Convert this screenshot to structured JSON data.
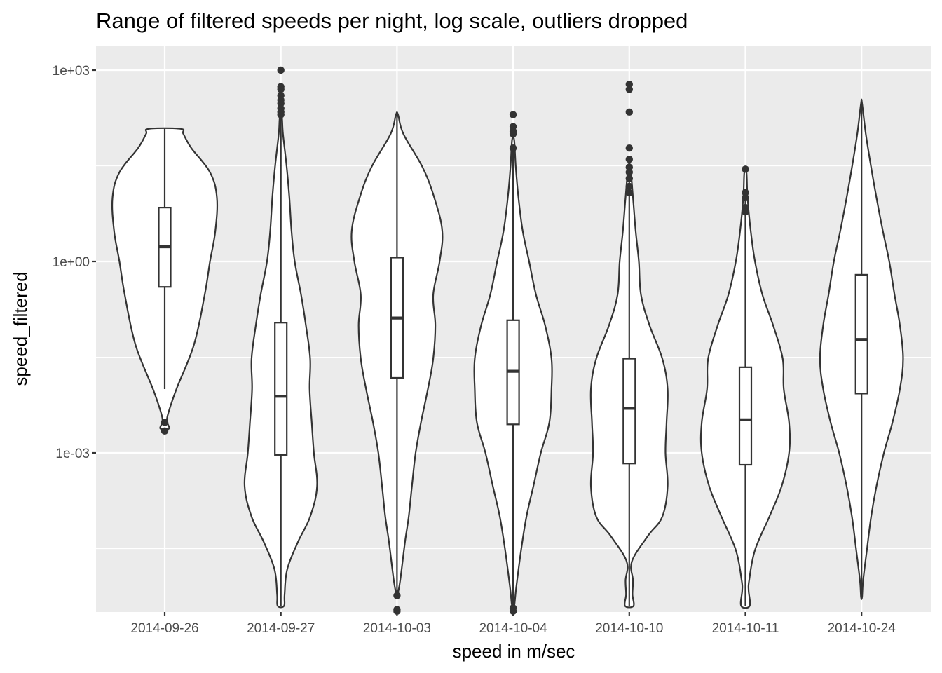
{
  "chart_data": {
    "type": "violin",
    "title": "Range of filtered speeds per night, log scale, outliers dropped",
    "xlabel": "speed in m/sec",
    "ylabel": "speed_filtered",
    "y_scale": "log10",
    "ylim": [
      2.63e-06,
      2.0
    ],
    "y_ticks": [
      {
        "value": 1000,
        "label": "1e+03"
      },
      {
        "value": 1,
        "label": "1e+00"
      },
      {
        "value": 0.001,
        "label": "1e-03"
      }
    ],
    "y_minor_ticks": [
      31.6,
      0.0316,
      3.16e-05
    ],
    "grid": true,
    "panel_background": "#ebebeb",
    "grid_color": "#ffffff",
    "violin_fill": "#ffffff",
    "line_color": "#333333",
    "categories": [
      "2014-09-26",
      "2014-09-27",
      "2014-10-03",
      "2014-10-04",
      "2014-10-10",
      "2014-10-11",
      "2014-10-24"
    ],
    "violins": [
      {
        "category": "2014-09-26",
        "density": [
          [
            0.0024,
            0.08
          ],
          [
            0.003,
            0.05
          ],
          [
            0.004,
            0.06
          ],
          [
            0.01,
            0.22
          ],
          [
            0.05,
            0.55
          ],
          [
            0.3,
            0.75
          ],
          [
            1.0,
            0.85
          ],
          [
            3.0,
            0.95
          ],
          [
            10.0,
            0.98
          ],
          [
            25.0,
            0.85
          ],
          [
            60.0,
            0.5
          ],
          [
            100.0,
            0.35
          ],
          [
            120.0,
            0.3
          ]
        ],
        "box": {
          "min": 0.01,
          "q1": 0.4,
          "median": 1.7,
          "q3": 7.0,
          "max": 120.0
        },
        "outliers": [
          0.003,
          0.0022
        ]
      },
      {
        "category": "2014-09-27",
        "density": [
          [
            4e-06,
            0.06
          ],
          [
            6e-06,
            0.07
          ],
          [
            1.5e-05,
            0.12
          ],
          [
            4e-05,
            0.32
          ],
          [
            0.0001,
            0.55
          ],
          [
            0.0003,
            0.68
          ],
          [
            0.001,
            0.62
          ],
          [
            0.003,
            0.58
          ],
          [
            0.01,
            0.54
          ],
          [
            0.03,
            0.55
          ],
          [
            0.1,
            0.47
          ],
          [
            0.3,
            0.38
          ],
          [
            1.0,
            0.26
          ],
          [
            3.0,
            0.2
          ],
          [
            10.0,
            0.16
          ],
          [
            30.0,
            0.11
          ],
          [
            100.0,
            0.04
          ],
          [
            180.0,
            0.02
          ]
        ],
        "box": {
          "min": 4e-06,
          "q1": 0.00093,
          "median": 0.0077,
          "q3": 0.11,
          "max": 200.0
        },
        "outliers": [
          1000,
          550,
          500,
          400,
          340,
          300,
          250,
          220,
          200
        ]
      },
      {
        "category": "2014-10-03",
        "density": [
          [
            6e-06,
            0.01
          ],
          [
            1e-05,
            0.06
          ],
          [
            4e-05,
            0.15
          ],
          [
            0.0001,
            0.22
          ],
          [
            0.0003,
            0.28
          ],
          [
            0.001,
            0.35
          ],
          [
            0.003,
            0.45
          ],
          [
            0.01,
            0.58
          ],
          [
            0.03,
            0.68
          ],
          [
            0.1,
            0.72
          ],
          [
            0.3,
            0.68
          ],
          [
            1.0,
            0.8
          ],
          [
            3.0,
            0.85
          ],
          [
            10.0,
            0.7
          ],
          [
            30.0,
            0.48
          ],
          [
            100.0,
            0.12
          ],
          [
            200.0,
            0.02
          ]
        ],
        "box": {
          "min": 6e-06,
          "q1": 0.015,
          "median": 0.13,
          "q3": 1.15,
          "max": 200.0
        },
        "outliers": [
          5.8e-06,
          3.5e-06,
          3.3e-06
        ]
      },
      {
        "category": "2014-10-04",
        "density": [
          [
            4e-06,
            0.02
          ],
          [
            8e-06,
            0.06
          ],
          [
            3e-05,
            0.15
          ],
          [
            0.0001,
            0.25
          ],
          [
            0.0003,
            0.38
          ],
          [
            0.001,
            0.52
          ],
          [
            0.003,
            0.68
          ],
          [
            0.01,
            0.72
          ],
          [
            0.03,
            0.72
          ],
          [
            0.1,
            0.6
          ],
          [
            0.3,
            0.43
          ],
          [
            1.0,
            0.3
          ],
          [
            3.0,
            0.18
          ],
          [
            10.0,
            0.1
          ],
          [
            30.0,
            0.05
          ],
          [
            80.0,
            0.02
          ]
        ],
        "box": {
          "min": 4e-06,
          "q1": 0.0028,
          "median": 0.019,
          "q3": 0.12,
          "max": 60.0
        },
        "outliers": [
          200,
          130,
          110,
          100,
          60,
          3.7e-06,
          3.3e-06
        ]
      },
      {
        "category": "2014-10-10",
        "density": [
          [
            4e-06,
            0.08
          ],
          [
            6e-06,
            0.06
          ],
          [
            1e-05,
            0.07
          ],
          [
            2e-05,
            0.05
          ],
          [
            5e-05,
            0.35
          ],
          [
            0.0001,
            0.62
          ],
          [
            0.0003,
            0.72
          ],
          [
            0.001,
            0.68
          ],
          [
            0.003,
            0.7
          ],
          [
            0.01,
            0.72
          ],
          [
            0.03,
            0.62
          ],
          [
            0.1,
            0.38
          ],
          [
            0.3,
            0.22
          ],
          [
            1.0,
            0.18
          ],
          [
            3.0,
            0.12
          ],
          [
            10.0,
            0.07
          ],
          [
            30.0,
            0.02
          ]
        ],
        "box": {
          "min": 4e-06,
          "q1": 0.00068,
          "median": 0.005,
          "q3": 0.03,
          "max": 20.0
        },
        "outliers": [
          600,
          500,
          220,
          60,
          40,
          30,
          25,
          20,
          15,
          12
        ]
      },
      {
        "category": "2014-10-11",
        "density": [
          [
            4e-06,
            0.08
          ],
          [
            7e-06,
            0.06
          ],
          [
            1e-05,
            0.07
          ],
          [
            3e-05,
            0.18
          ],
          [
            0.0001,
            0.45
          ],
          [
            0.0003,
            0.68
          ],
          [
            0.001,
            0.82
          ],
          [
            0.003,
            0.82
          ],
          [
            0.01,
            0.72
          ],
          [
            0.03,
            0.7
          ],
          [
            0.1,
            0.52
          ],
          [
            0.3,
            0.32
          ],
          [
            1.0,
            0.18
          ],
          [
            3.0,
            0.1
          ],
          [
            10.0,
            0.04
          ],
          [
            25.0,
            0.02
          ]
        ],
        "box": {
          "min": 4e-06,
          "q1": 0.00065,
          "median": 0.0033,
          "q3": 0.022,
          "max": 12.0
        },
        "outliers": [
          28,
          12,
          10,
          7,
          6
        ]
      },
      {
        "category": "2014-10-24",
        "density": [
          [
            5.5e-06,
            0.01
          ],
          [
            1e-05,
            0.03
          ],
          [
            3e-05,
            0.1
          ],
          [
            0.0001,
            0.18
          ],
          [
            0.0003,
            0.28
          ],
          [
            0.001,
            0.42
          ],
          [
            0.003,
            0.58
          ],
          [
            0.01,
            0.72
          ],
          [
            0.03,
            0.78
          ],
          [
            0.1,
            0.72
          ],
          [
            0.3,
            0.62
          ],
          [
            1.0,
            0.52
          ],
          [
            3.0,
            0.4
          ],
          [
            10.0,
            0.28
          ],
          [
            30.0,
            0.18
          ],
          [
            100.0,
            0.08
          ],
          [
            300.0,
            0.01
          ]
        ],
        "box": {
          "min": 5.5e-06,
          "q1": 0.0085,
          "median": 0.06,
          "q3": 0.62,
          "max": 280.0
        },
        "outliers": []
      }
    ]
  }
}
